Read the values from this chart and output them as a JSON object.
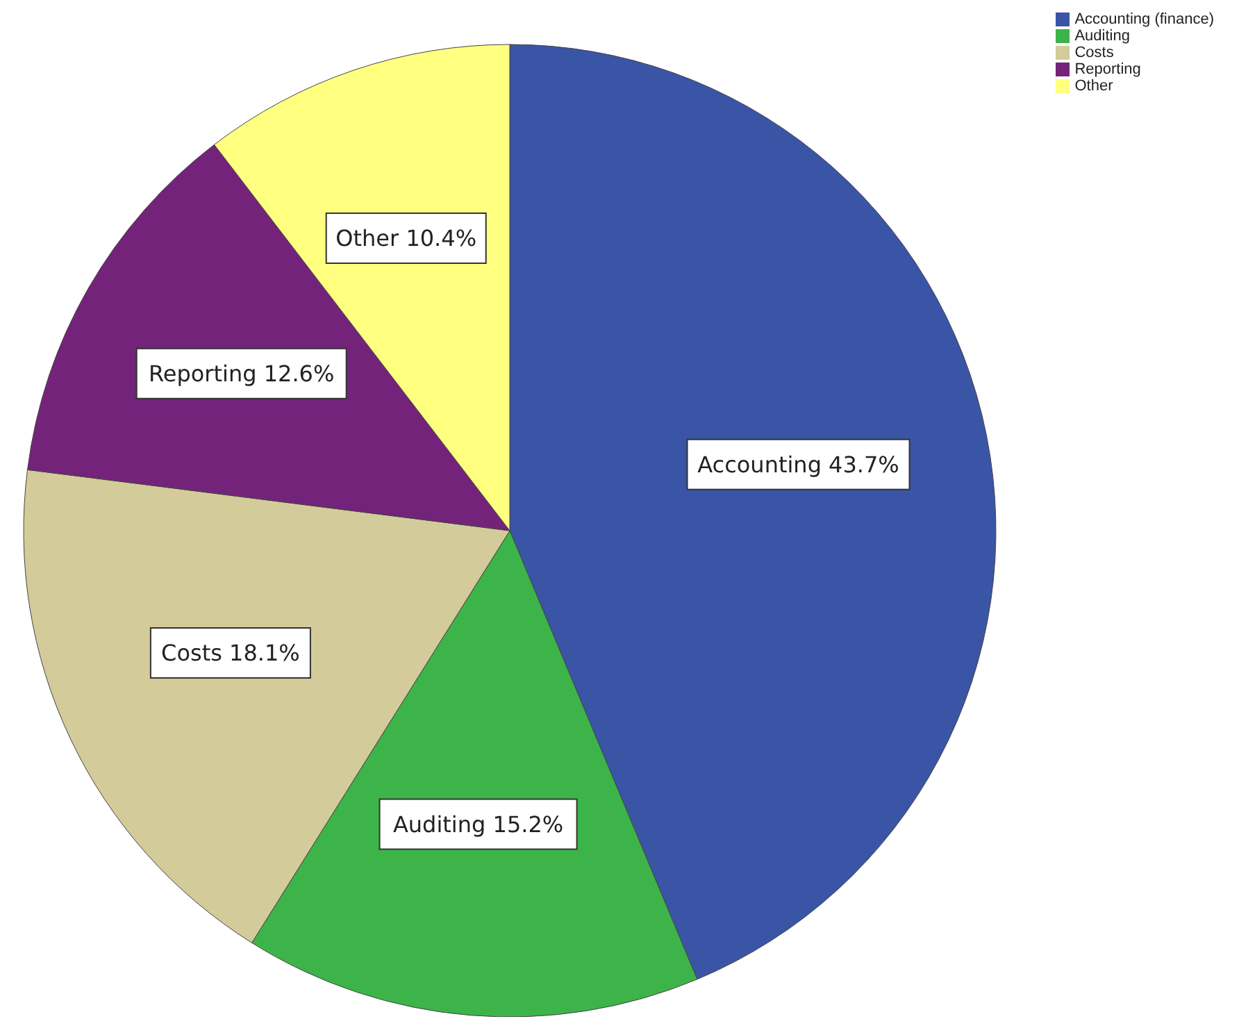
{
  "chart_data": {
    "type": "pie",
    "categories": [
      "Accounting (finance)",
      "Auditing",
      "Costs",
      "Reporting",
      "Other"
    ],
    "values": [
      43.7,
      15.2,
      18.1,
      12.6,
      10.4
    ],
    "colors": [
      "#3a54a6",
      "#3cb449",
      "#d3cb99",
      "#74237a",
      "#ffff80"
    ],
    "value_labels": [
      "Accounting 43.7%",
      "Auditing 15.2%",
      "Costs 18.1%",
      "Reporting 12.6%",
      "Other 10.4%"
    ],
    "legend": "top right"
  }
}
